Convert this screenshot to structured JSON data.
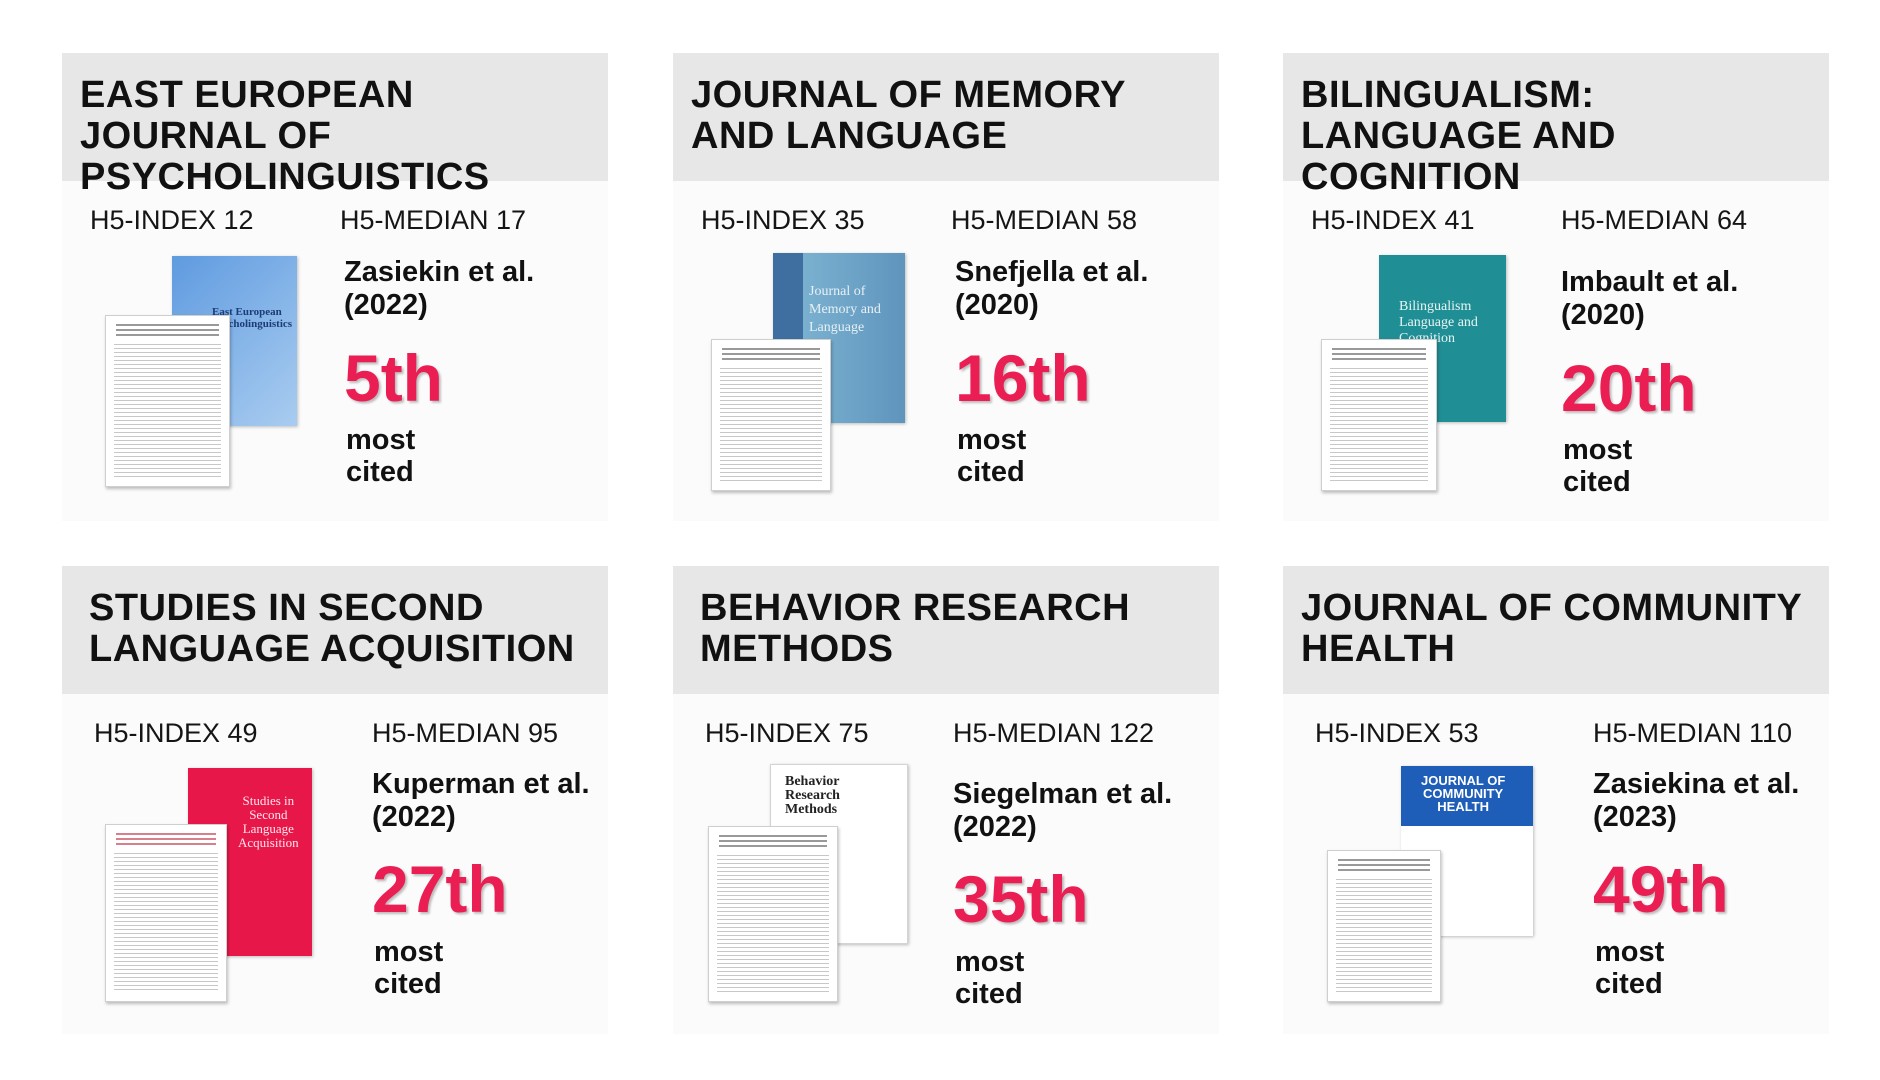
{
  "colors": {
    "header_bg": "#e7e7e7",
    "card_bg": "#fbfbfb",
    "rank": "#ea1e52",
    "text": "#111111"
  },
  "journals": [
    {
      "title": "EAST EUROPEAN JOURNAL OF PSYCHOLINGUISTICS",
      "h5_index": "H5-INDEX 12",
      "h5_median": "H5-MEDIAN 17",
      "author": "Zasiekin et al.\n(2022)",
      "rank": "5th",
      "note": "most\ncited",
      "cover_title": "East European\nPsycholinguistics",
      "cover_color": "#7fb0e6"
    },
    {
      "title": "JOURNAL OF MEMORY AND LANGUAGE",
      "h5_index": "H5-INDEX 35",
      "h5_median": "H5-MEDIAN 58",
      "author": "Snefjella et al.\n(2020)",
      "rank": "16th",
      "note": "most\ncited",
      "cover_title": "Journal of\nMemory and\nLanguage",
      "cover_color": "#6e9fc3"
    },
    {
      "title": "BILINGUALISM: LANGUAGE AND COGNITION",
      "h5_index": "H5-INDEX 41",
      "h5_median": "H5-MEDIAN 64",
      "author": "Imbault et al.\n(2020)",
      "rank": "20th",
      "note": "most\ncited",
      "cover_title": "Bilingualism\nLanguage and Cognition",
      "cover_color": "#1f8f95"
    },
    {
      "title": "STUDIES IN SECOND LANGUAGE ACQUISITION",
      "h5_index": "H5-INDEX 49",
      "h5_median": "H5-MEDIAN 95",
      "author": "Kuperman et al.\n(2022)",
      "rank": "27th",
      "note": "most\ncited",
      "cover_title": "Studies in\nSecond\nLanguage\nAcquisition",
      "cover_color": "#e8174a"
    },
    {
      "title": "BEHAVIOR RESEARCH METHODS",
      "h5_index": "H5-INDEX 75",
      "h5_median": "H5-MEDIAN 122",
      "author": "Siegelman et al.\n(2022)",
      "rank": "35th",
      "note": "most\ncited",
      "cover_title": "Behavior\nResearch\nMethods",
      "cover_color": "#ffffff"
    },
    {
      "title": "JOURNAL OF COMMUNITY HEALTH",
      "h5_index": "H5-INDEX 53",
      "h5_median": "H5-MEDIAN 110",
      "author": "Zasiekina et al.\n(2023)",
      "rank": "49th",
      "note": "most\ncited",
      "cover_title": "JOURNAL OF\nCOMMUNITY\nHEALTH",
      "cover_color": "#ffffff"
    }
  ]
}
